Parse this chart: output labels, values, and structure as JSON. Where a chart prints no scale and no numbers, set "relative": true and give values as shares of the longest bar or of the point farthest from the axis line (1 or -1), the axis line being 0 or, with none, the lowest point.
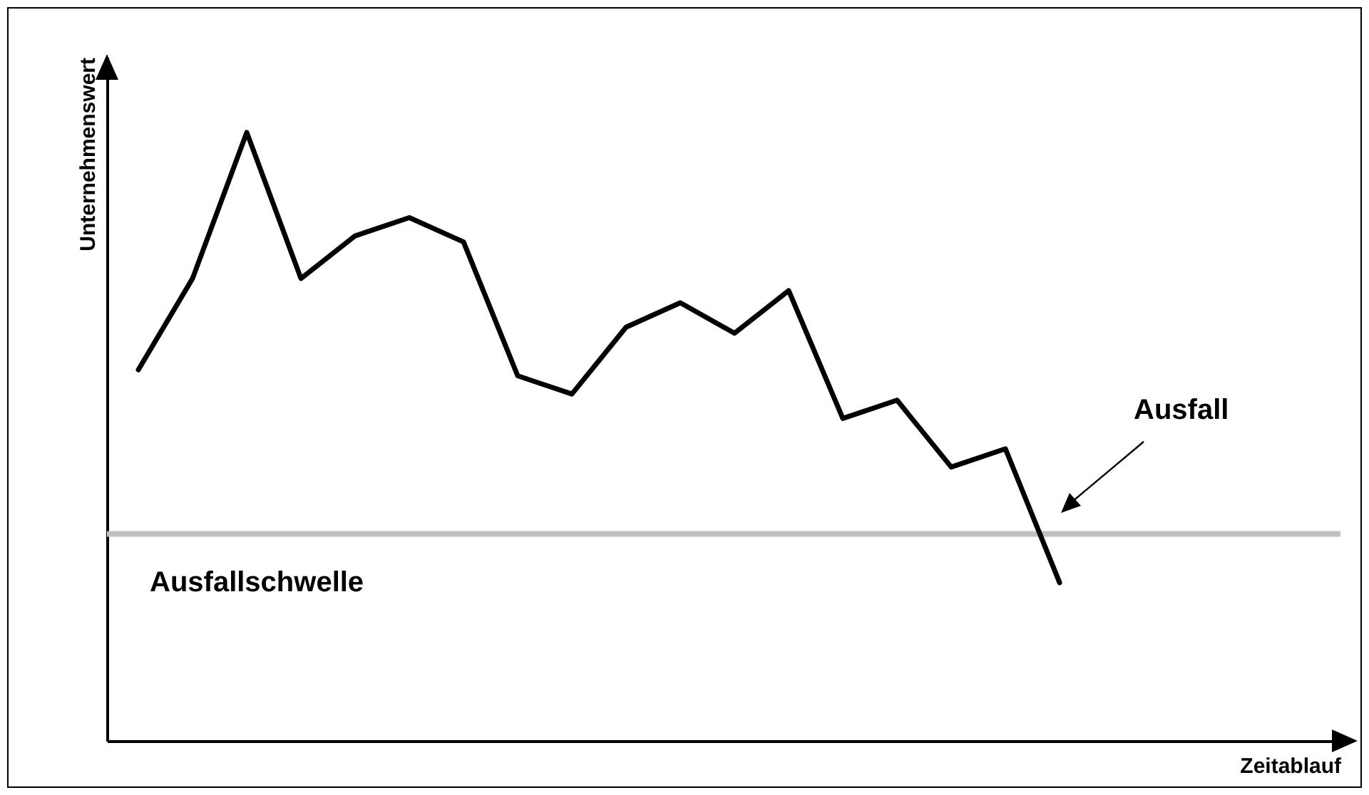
{
  "chart_data": {
    "type": "line",
    "relative": true,
    "xlabel": "Zeitablauf",
    "ylabel": "Unternehmenswert",
    "tick_labels": false,
    "categories": [
      null,
      null,
      null,
      null,
      null,
      null,
      null,
      null,
      null,
      null,
      null,
      null,
      null,
      null,
      null,
      null,
      null,
      null,
      null,
      null,
      null,
      null
    ],
    "values": [
      0.61,
      0.76,
      1,
      0.76,
      0.83,
      0.86,
      0.82,
      0.6,
      0.57,
      0.68,
      0.72,
      0.67,
      0.74,
      0.53,
      0.56,
      0.45,
      0.48,
      0.26,
      null,
      null,
      null,
      null
    ],
    "color": "#000000",
    "ref_lines": [
      {
        "axis": "y",
        "value": 0.34,
        "label": "Ausfallschwelle",
        "color": "#c0c0c0"
      }
    ],
    "annotations": [
      "Ausfall"
    ]
  }
}
